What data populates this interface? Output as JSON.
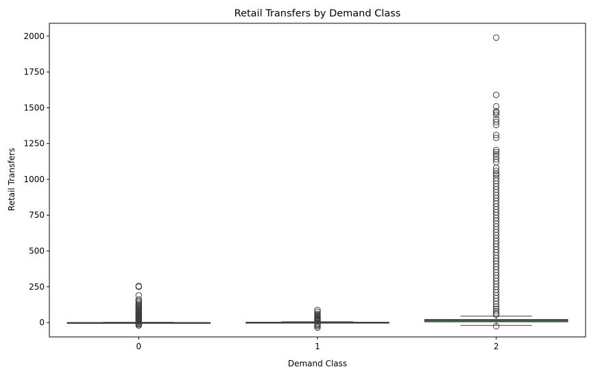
{
  "chart_data": {
    "type": "box",
    "title": "Retail Transfers by Demand Class",
    "xlabel": "Demand Class",
    "ylabel": "Retail Transfers",
    "categories": [
      "0",
      "1",
      "2"
    ],
    "yticks": [
      0,
      250,
      500,
      750,
      1000,
      1250,
      1500,
      1750,
      2000
    ],
    "ylim": [
      -100,
      2090
    ],
    "grid": false,
    "colors": {
      "box_fill": "#3a923a",
      "box_edge": "#3d3d3d",
      "flier_edge": "#3d3d3d"
    },
    "boxes": [
      {
        "category": "0",
        "q1": 0,
        "median": 0,
        "q3": 1,
        "whisker_low": 0,
        "whisker_high": 2,
        "fliers": [
          255,
          250,
          190,
          160,
          150,
          140,
          130,
          122,
          115,
          108,
          102,
          96,
          90,
          85,
          80,
          75,
          70,
          65,
          60,
          55,
          50,
          46,
          42,
          38,
          34,
          30,
          27,
          24,
          20,
          16,
          12,
          8,
          5,
          -3,
          -8,
          -13,
          -20
        ]
      },
      {
        "category": "1",
        "q1": 0,
        "median": 1,
        "q3": 3,
        "whisker_low": -2,
        "whisker_high": 6,
        "fliers": [
          88,
          75,
          60,
          52,
          46,
          40,
          35,
          30,
          26,
          22,
          18,
          14,
          10,
          -6,
          -12,
          -18,
          -25,
          -35
        ]
      },
      {
        "category": "2",
        "q1": 5,
        "median": 14,
        "q3": 22,
        "whisker_low": -20,
        "whisker_high": 45,
        "fliers": [
          1990,
          1590,
          1510,
          1475,
          1465,
          1450,
          1420,
          1400,
          1380,
          1310,
          1290,
          1205,
          1190,
          1175,
          1160,
          1140,
          1120,
          1080,
          1060,
          1040,
          1030,
          1010,
          990,
          970,
          950,
          930,
          910,
          890,
          870,
          850,
          830,
          810,
          790,
          770,
          750,
          730,
          710,
          690,
          670,
          650,
          630,
          610,
          590,
          570,
          550,
          530,
          510,
          490,
          470,
          450,
          430,
          410,
          390,
          370,
          350,
          330,
          310,
          290,
          270,
          250,
          230,
          210,
          190,
          170,
          150,
          130,
          110,
          95,
          80,
          65,
          55,
          -25
        ]
      }
    ]
  }
}
